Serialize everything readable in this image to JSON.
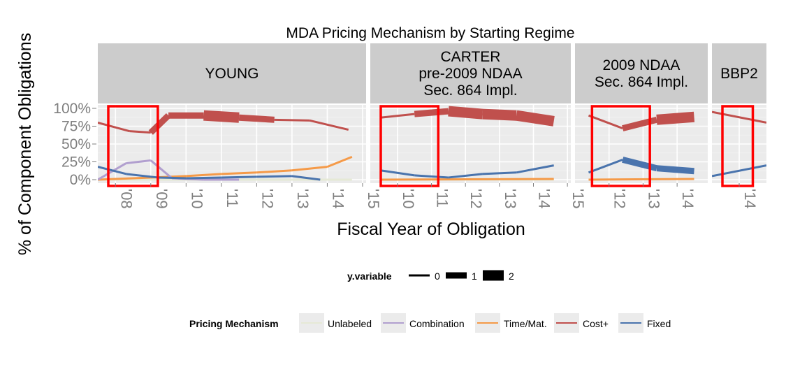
{
  "chart_data": {
    "type": "line",
    "title": "MDA Pricing Mechanism by Starting Regime",
    "xlabel": "Fiscal Year of Obligation",
    "ylabel": "% of Component Obligations",
    "yticks": [
      "0%",
      "25%",
      "50%",
      "75%",
      "100%"
    ],
    "ylim": [
      0,
      1
    ],
    "grid": true,
    "panels": [
      {
        "label": [
          "YOUNG"
        ],
        "xlim": [
          2007.5,
          2015.1
        ],
        "xtick_values": [
          2008,
          2009,
          2010,
          2011,
          2012,
          2013,
          2014,
          2015
        ],
        "xticks": [
          "'08",
          "'09",
          "'10",
          "'11",
          "'12",
          "'13",
          "'14",
          "'15"
        ],
        "highlight_years": [
          2008,
          2009
        ],
        "series": [
          {
            "name": "Cost+",
            "points": [
              {
                "x": 2007.5,
                "y": 0.8,
                "w": 0
              },
              {
                "x": 2008.4,
                "y": 0.68,
                "w": 0
              },
              {
                "x": 2009.0,
                "y": 0.66,
                "w": 1
              },
              {
                "x": 2009.5,
                "y": 0.9,
                "w": 1
              },
              {
                "x": 2010.5,
                "y": 0.9,
                "w": 2
              },
              {
                "x": 2011.5,
                "y": 0.87,
                "w": 1
              },
              {
                "x": 2012.5,
                "y": 0.84,
                "w": 0
              },
              {
                "x": 2013.5,
                "y": 0.83,
                "w": 0
              },
              {
                "x": 2014.6,
                "y": 0.7,
                "w": 0
              }
            ]
          },
          {
            "name": "Fixed",
            "points": [
              {
                "x": 2007.5,
                "y": 0.18,
                "w": 0
              },
              {
                "x": 2008.3,
                "y": 0.08,
                "w": 0
              },
              {
                "x": 2009.2,
                "y": 0.03,
                "w": 0
              },
              {
                "x": 2010.0,
                "y": 0.02,
                "w": 0
              },
              {
                "x": 2011.0,
                "y": 0.03,
                "w": 0
              },
              {
                "x": 2012.0,
                "y": 0.04,
                "w": 0
              },
              {
                "x": 2013.0,
                "y": 0.05,
                "w": 0
              },
              {
                "x": 2013.8,
                "y": 0.0,
                "w": 0
              }
            ]
          },
          {
            "name": "Combination",
            "points": [
              {
                "x": 2007.5,
                "y": 0.0,
                "w": 0
              },
              {
                "x": 2008.3,
                "y": 0.23,
                "w": 0
              },
              {
                "x": 2009.0,
                "y": 0.27,
                "w": 0
              },
              {
                "x": 2009.6,
                "y": 0.02,
                "w": 0
              },
              {
                "x": 2010.5,
                "y": 0.0,
                "w": 0
              },
              {
                "x": 2011.5,
                "y": 0.0,
                "w": 0
              }
            ]
          },
          {
            "name": "Time/Mat.",
            "points": [
              {
                "x": 2007.5,
                "y": 0.0,
                "w": 0
              },
              {
                "x": 2009.0,
                "y": 0.03,
                "w": 0
              },
              {
                "x": 2010.0,
                "y": 0.05,
                "w": 0
              },
              {
                "x": 2011.0,
                "y": 0.08,
                "w": 0
              },
              {
                "x": 2012.0,
                "y": 0.1,
                "w": 0
              },
              {
                "x": 2013.0,
                "y": 0.13,
                "w": 0
              },
              {
                "x": 2014.0,
                "y": 0.18,
                "w": 0
              },
              {
                "x": 2014.7,
                "y": 0.32,
                "w": 0
              }
            ]
          },
          {
            "name": "Unlabeled",
            "points": [
              {
                "x": 2007.5,
                "y": 0.0,
                "w": 0
              },
              {
                "x": 2014.7,
                "y": 0.0,
                "w": 0
              }
            ]
          }
        ]
      },
      {
        "label": [
          "CARTER",
          "pre-2009 NDAA",
          "Sec. 864 Impl."
        ],
        "xlim": [
          2009.2,
          2015.1
        ],
        "xtick_values": [
          2010,
          2011,
          2012,
          2013,
          2014,
          2015
        ],
        "xticks": [
          "'10",
          "'11",
          "'12",
          "'13",
          "'14",
          "'15"
        ],
        "highlight_years": [
          2010,
          2011
        ],
        "series": [
          {
            "name": "Cost+",
            "points": [
              {
                "x": 2009.5,
                "y": 0.87,
                "w": 0
              },
              {
                "x": 2010.5,
                "y": 0.92,
                "w": 1
              },
              {
                "x": 2011.5,
                "y": 0.96,
                "w": 2
              },
              {
                "x": 2012.5,
                "y": 0.92,
                "w": 2
              },
              {
                "x": 2013.5,
                "y": 0.9,
                "w": 2
              },
              {
                "x": 2014.6,
                "y": 0.82,
                "w": 1
              }
            ]
          },
          {
            "name": "Fixed",
            "points": [
              {
                "x": 2009.5,
                "y": 0.13,
                "w": 0
              },
              {
                "x": 2010.5,
                "y": 0.06,
                "w": 0
              },
              {
                "x": 2011.5,
                "y": 0.03,
                "w": 0
              },
              {
                "x": 2012.5,
                "y": 0.08,
                "w": 0
              },
              {
                "x": 2013.5,
                "y": 0.1,
                "w": 0
              },
              {
                "x": 2014.6,
                "y": 0.2,
                "w": 0
              }
            ]
          },
          {
            "name": "Time/Mat.",
            "points": [
              {
                "x": 2009.5,
                "y": 0.0,
                "w": 0
              },
              {
                "x": 2014.6,
                "y": 0.01,
                "w": 0
              }
            ]
          },
          {
            "name": "Unlabeled",
            "points": [
              {
                "x": 2009.5,
                "y": 0.0,
                "w": 0
              },
              {
                "x": 2014.6,
                "y": 0.0,
                "w": 0
              }
            ]
          }
        ]
      },
      {
        "label": [
          "2009 NDAA",
          "Sec. 864 Impl."
        ],
        "xlim": [
          2011.0,
          2014.9
        ],
        "xtick_values": [
          2012,
          2013,
          2014
        ],
        "xticks": [
          "'12",
          "'13",
          "'14"
        ],
        "highlight_years": [
          2012,
          2013
        ],
        "series": [
          {
            "name": "Cost+",
            "points": [
              {
                "x": 2011.4,
                "y": 0.9,
                "w": 0
              },
              {
                "x": 2012.4,
                "y": 0.72,
                "w": 1
              },
              {
                "x": 2013.4,
                "y": 0.84,
                "w": 2
              },
              {
                "x": 2014.5,
                "y": 0.88,
                "w": 2
              }
            ]
          },
          {
            "name": "Fixed",
            "points": [
              {
                "x": 2011.4,
                "y": 0.1,
                "w": 0
              },
              {
                "x": 2012.4,
                "y": 0.28,
                "w": 1
              },
              {
                "x": 2013.4,
                "y": 0.16,
                "w": 1
              },
              {
                "x": 2014.5,
                "y": 0.12,
                "w": 0
              }
            ]
          },
          {
            "name": "Time/Mat.",
            "points": [
              {
                "x": 2011.4,
                "y": 0.0,
                "w": 0
              },
              {
                "x": 2014.5,
                "y": 0.01,
                "w": 0
              }
            ]
          }
        ]
      },
      {
        "label": [
          "BBP2"
        ],
        "xlim": [
          2013.6,
          2014.4
        ],
        "xtick_values": [
          2014
        ],
        "xticks": [
          "'14"
        ],
        "highlight_years": [
          2014
        ],
        "series": [
          {
            "name": "Cost+",
            "points": [
              {
                "x": 2013.6,
                "y": 0.95,
                "w": 0
              },
              {
                "x": 2014.4,
                "y": 0.8,
                "w": 0
              }
            ]
          },
          {
            "name": "Fixed",
            "points": [
              {
                "x": 2013.6,
                "y": 0.05,
                "w": 0
              },
              {
                "x": 2014.4,
                "y": 0.2,
                "w": 0
              }
            ]
          }
        ]
      }
    ]
  },
  "legends": {
    "size": {
      "title": "y.variable",
      "items": [
        {
          "label": "0",
          "w": 0
        },
        {
          "label": "1",
          "w": 1
        },
        {
          "label": "2",
          "w": 2
        }
      ]
    },
    "color": {
      "title": "Pricing Mechanism",
      "items": [
        {
          "label": "Unlabeled",
          "color": "#e6e9d6"
        },
        {
          "label": "Combination",
          "color": "#b19fcf"
        },
        {
          "label": "Time/Mat.",
          "color": "#f59a48"
        },
        {
          "label": "Cost+",
          "color": "#c0504d"
        },
        {
          "label": "Fixed",
          "color": "#4a74ad"
        }
      ]
    }
  },
  "colors": {
    "Unlabeled": "#e6e9d6",
    "Combination": "#b19fcf",
    "Time/Mat.": "#f59a48",
    "Cost+": "#c0504d",
    "Fixed": "#4a74ad",
    "highlight": "#ff0000",
    "panel_bg": "#ebebeb",
    "strip_bg": "#cccccc",
    "axis_text": "#7f7f7f"
  }
}
